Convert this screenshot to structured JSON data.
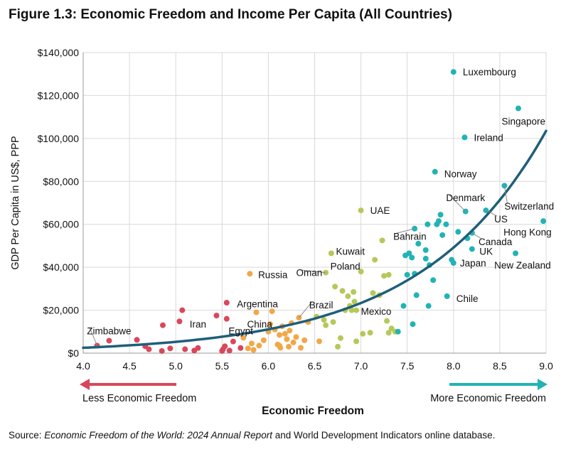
{
  "figure_title": "Figure 1.3: Economic Freedom and Income Per Capita (All Countries)",
  "source": {
    "prefix": "Source: ",
    "italic": "Economic Freedom of the World: 2024 Annual Report",
    "suffix": " and World Development Indicators online database."
  },
  "arrows": {
    "left_label": "Less Economic Freedom",
    "right_label": "More Economic Freedom",
    "left_color": "#d9475b",
    "right_color": "#22b3b5"
  },
  "chart_data": {
    "type": "scatter",
    "title": "Figure 1.3: Economic Freedom and Income Per Capita (All Countries)",
    "xlabel": "Economic Freedom",
    "ylabel": "GDP Per Capita in US$, PPP",
    "xlim": [
      4.0,
      9.0
    ],
    "ylim": [
      0,
      140000
    ],
    "xticks": [
      4.0,
      4.5,
      5.0,
      5.5,
      6.0,
      6.5,
      7.0,
      7.5,
      8.0,
      8.5,
      9.0
    ],
    "xtick_labels": [
      "4.0",
      "4.5",
      "5.0",
      "5.5",
      "6.0",
      "6.5",
      "7.0",
      "7.5",
      "8.0",
      "8.5",
      "9.0"
    ],
    "yticks": [
      0,
      20000,
      40000,
      60000,
      80000,
      100000,
      120000,
      140000
    ],
    "ytick_labels": [
      "$0",
      "$20,000",
      "$40,000",
      "$60,000",
      "$80,000",
      "$100,000",
      "$120,000",
      "$140,000"
    ],
    "grid": true,
    "colors": {
      "red": "#d9475b",
      "orange": "#f0a84a",
      "green": "#b5c95a",
      "teal": "#22b3b5",
      "trend": "#1e5f7a"
    },
    "trendline": {
      "form": "exponential",
      "a": 2500,
      "b": 0.7447,
      "x0": 4.0,
      "x_range": [
        4.0,
        9.0
      ]
    },
    "labels": [
      {
        "text": "Luxembourg",
        "x": 8.0,
        "y": 131000,
        "lx": 8.1,
        "ly": 131000,
        "leader": false
      },
      {
        "text": "Singapore",
        "x": 8.7,
        "y": 114000,
        "lx": 8.52,
        "ly": 108000,
        "leader": false
      },
      {
        "text": "Ireland",
        "x": 8.12,
        "y": 100500,
        "lx": 8.22,
        "ly": 100500,
        "leader": false
      },
      {
        "text": "Norway",
        "x": 7.8,
        "y": 84500,
        "lx": 7.9,
        "ly": 83500,
        "leader": false
      },
      {
        "text": "Denmark",
        "x": 8.13,
        "y": 66000,
        "lx": 7.92,
        "ly": 72500,
        "leader": true
      },
      {
        "text": "Switzerland",
        "x": 8.55,
        "y": 78000,
        "lx": 8.55,
        "ly": 68500,
        "leader": true
      },
      {
        "text": "US",
        "x": 8.35,
        "y": 66500,
        "lx": 8.44,
        "ly": 62500,
        "leader": true
      },
      {
        "text": "Hong Kong",
        "x": 8.97,
        "y": 61500,
        "lx": 8.54,
        "ly": 56500,
        "leader": false
      },
      {
        "text": "Canada",
        "x": 8.2,
        "y": 56000,
        "lx": 8.27,
        "ly": 52000,
        "leader": true
      },
      {
        "text": "UK",
        "x": 8.2,
        "y": 48500,
        "lx": 8.28,
        "ly": 47500,
        "leader": false
      },
      {
        "text": "Japan",
        "x": 8.0,
        "y": 42000,
        "lx": 8.07,
        "ly": 42000,
        "leader": false
      },
      {
        "text": "New Zealand",
        "x": 8.67,
        "y": 46500,
        "lx": 8.44,
        "ly": 41000,
        "leader": false
      },
      {
        "text": "Chile",
        "x": 7.93,
        "y": 26500,
        "lx": 8.03,
        "ly": 25500,
        "leader": false
      },
      {
        "text": "Bahrain",
        "x": 7.58,
        "y": 58000,
        "lx": 7.35,
        "ly": 54500,
        "leader": true
      },
      {
        "text": "UAE",
        "x": 7.0,
        "y": 66500,
        "lx": 7.1,
        "ly": 66500,
        "leader": false
      },
      {
        "text": "Kuwait",
        "x": 6.68,
        "y": 46500,
        "lx": 6.73,
        "ly": 47500,
        "leader": false
      },
      {
        "text": "Poland",
        "x": 6.73,
        "y": 40500,
        "lx": 6.67,
        "ly": 40500,
        "leader": false
      },
      {
        "text": "Oman",
        "x": 6.62,
        "y": 37500,
        "lx": 6.3,
        "ly": 37500,
        "leader": true
      },
      {
        "text": "Russia",
        "x": 5.8,
        "y": 37000,
        "lx": 5.89,
        "ly": 36500,
        "leader": false
      },
      {
        "text": "Argentina",
        "x": 5.55,
        "y": 23500,
        "lx": 5.66,
        "ly": 23000,
        "leader": false
      },
      {
        "text": "Brazil",
        "x": 6.33,
        "y": 16500,
        "lx": 6.44,
        "ly": 22500,
        "leader": true
      },
      {
        "text": "Mexico",
        "x": 6.93,
        "y": 20000,
        "lx": 7.0,
        "ly": 19500,
        "leader": false
      },
      {
        "text": "Iran",
        "x": 5.05,
        "y": 15000,
        "lx": 5.15,
        "ly": 13500,
        "leader": false
      },
      {
        "text": "China",
        "x": 6.02,
        "y": 13500,
        "lx": 5.77,
        "ly": 13500,
        "leader": false
      },
      {
        "text": "Egypt",
        "x": 5.52,
        "y": 12500,
        "lx": 5.57,
        "ly": 10500,
        "leader": false
      },
      {
        "text": "Zimbabwe",
        "x": 4.15,
        "y": 3500,
        "lx": 4.04,
        "ly": 10500,
        "leader": true
      }
    ],
    "series": [
      {
        "name": "red",
        "color": "#d9475b",
        "points": [
          [
            4.15,
            3500
          ],
          [
            4.28,
            5800
          ],
          [
            4.58,
            6200
          ],
          [
            4.67,
            3200
          ],
          [
            4.71,
            1800
          ],
          [
            4.85,
            1000
          ],
          [
            4.86,
            13000
          ],
          [
            4.94,
            2200
          ],
          [
            5.04,
            14800
          ],
          [
            5.07,
            20000
          ],
          [
            5.1,
            1800
          ],
          [
            5.2,
            1200
          ],
          [
            5.24,
            2400
          ],
          [
            5.44,
            17500
          ],
          [
            5.5,
            1000
          ],
          [
            5.51,
            1800
          ],
          [
            5.53,
            3200
          ],
          [
            5.55,
            16000
          ],
          [
            5.55,
            23500
          ],
          [
            5.58,
            1200
          ],
          [
            5.62,
            5400
          ],
          [
            5.7,
            2400
          ]
        ]
      },
      {
        "name": "orange",
        "color": "#f0a84a",
        "points": [
          [
            5.73,
            7200
          ],
          [
            5.78,
            2200
          ],
          [
            5.8,
            37000
          ],
          [
            5.82,
            4500
          ],
          [
            5.84,
            1500
          ],
          [
            5.87,
            19000
          ],
          [
            5.9,
            3500
          ],
          [
            5.95,
            6000
          ],
          [
            6.02,
            13500
          ],
          [
            6.04,
            19500
          ],
          [
            6.07,
            11000
          ],
          [
            6.1,
            4000
          ],
          [
            6.12,
            8500
          ],
          [
            6.13,
            2500
          ],
          [
            6.15,
            12500
          ],
          [
            6.18,
            9000
          ],
          [
            6.2,
            6500
          ],
          [
            6.22,
            3000
          ],
          [
            6.23,
            10500
          ],
          [
            6.25,
            14000
          ],
          [
            6.27,
            5000
          ],
          [
            6.3,
            7500
          ],
          [
            6.33,
            16500
          ],
          [
            6.35,
            2500
          ],
          [
            6.39,
            6000
          ],
          [
            6.43,
            14500
          ],
          [
            6.55,
            5500
          ],
          [
            6.12,
            3500
          ],
          [
            6.0,
            10000
          ]
        ]
      },
      {
        "name": "green",
        "color": "#b5c95a",
        "points": [
          [
            6.52,
            17000
          ],
          [
            6.6,
            15500
          ],
          [
            6.62,
            37500
          ],
          [
            6.62,
            13000
          ],
          [
            6.68,
            46500
          ],
          [
            6.7,
            14500
          ],
          [
            6.72,
            31000
          ],
          [
            6.75,
            3000
          ],
          [
            6.78,
            7000
          ],
          [
            6.8,
            29000
          ],
          [
            6.83,
            20000
          ],
          [
            6.86,
            26500
          ],
          [
            6.88,
            22000
          ],
          [
            6.9,
            20000
          ],
          [
            6.92,
            28500
          ],
          [
            6.93,
            24000
          ],
          [
            6.95,
            20000
          ],
          [
            6.95,
            5500
          ],
          [
            7.0,
            38000
          ],
          [
            7.0,
            66500
          ],
          [
            7.02,
            9000
          ],
          [
            7.1,
            9500
          ],
          [
            7.13,
            28000
          ],
          [
            7.15,
            43500
          ],
          [
            7.2,
            27000
          ],
          [
            7.23,
            52500
          ],
          [
            7.25,
            36000
          ],
          [
            7.28,
            15000
          ],
          [
            7.3,
            9500
          ],
          [
            7.3,
            36500
          ],
          [
            7.33,
            11500
          ],
          [
            7.37,
            10000
          ]
        ]
      },
      {
        "name": "teal",
        "color": "#22b3b5",
        "points": [
          [
            7.4,
            10000
          ],
          [
            7.46,
            22000
          ],
          [
            7.48,
            45500
          ],
          [
            7.5,
            36500
          ],
          [
            7.52,
            46500
          ],
          [
            7.55,
            44500
          ],
          [
            7.56,
            13500
          ],
          [
            7.58,
            37000
          ],
          [
            7.58,
            58000
          ],
          [
            7.6,
            27000
          ],
          [
            7.62,
            51000
          ],
          [
            7.7,
            48000
          ],
          [
            7.7,
            44000
          ],
          [
            7.72,
            60000
          ],
          [
            7.73,
            22000
          ],
          [
            7.74,
            41000
          ],
          [
            7.78,
            34000
          ],
          [
            7.8,
            84500
          ],
          [
            7.82,
            60000
          ],
          [
            7.84,
            61500
          ],
          [
            7.86,
            64500
          ],
          [
            7.88,
            55000
          ],
          [
            7.92,
            60000
          ],
          [
            7.93,
            26500
          ],
          [
            7.98,
            43500
          ],
          [
            8.0,
            42000
          ],
          [
            8.0,
            131000
          ],
          [
            8.05,
            56500
          ],
          [
            8.12,
            100500
          ],
          [
            8.13,
            66000
          ],
          [
            8.15,
            53500
          ],
          [
            8.2,
            56000
          ],
          [
            8.2,
            48500
          ],
          [
            8.35,
            66500
          ],
          [
            8.55,
            78000
          ],
          [
            8.67,
            46500
          ],
          [
            8.7,
            114000
          ],
          [
            8.97,
            61500
          ]
        ]
      }
    ]
  }
}
